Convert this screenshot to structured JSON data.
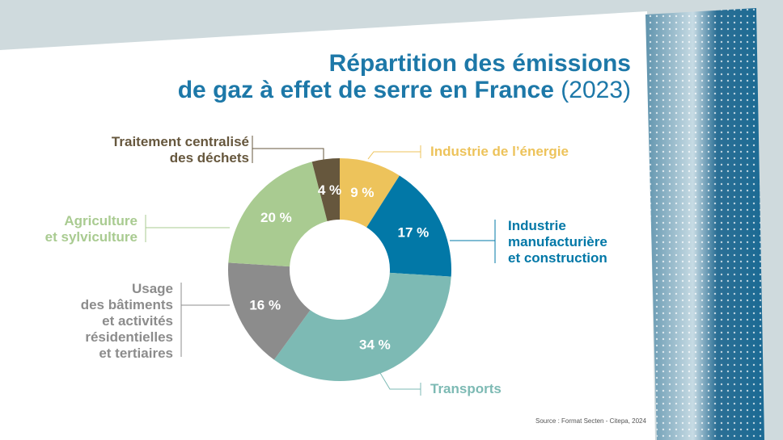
{
  "title": {
    "line1": "Répartition des émissions",
    "line2": "de gaz à effet de serre en France",
    "year": "(2023)"
  },
  "source": "Source : Format Secten - Citepa, 2024",
  "chart_data": {
    "type": "pie",
    "donut": true,
    "unit": "%",
    "slices": [
      {
        "label": "Industrie de l’énergie",
        "value": 9,
        "display": "9 %",
        "color": "#edc35b"
      },
      {
        "label": "Industrie manufacturière et construction",
        "value": 17,
        "display": "17 %",
        "color": "#0278a7"
      },
      {
        "label": "Transports",
        "value": 34,
        "display": "34 %",
        "color": "#7dbab4"
      },
      {
        "label": "Usage des bâtiments et activités résidentielles et tertiaires",
        "value": 16,
        "display": "16 %",
        "color": "#8c8c8c"
      },
      {
        "label": "Agriculture et sylviculture",
        "value": 20,
        "display": "20 %",
        "color": "#a9cb91"
      },
      {
        "label": "Traitement centralisé des déchets",
        "value": 4,
        "display": "4 %",
        "color": "#66573d"
      }
    ]
  },
  "labels": {
    "energie": [
      "Industrie de l’énergie"
    ],
    "manuf": [
      "Industrie",
      "manufacturière",
      "et construction"
    ],
    "transports": [
      "Transports"
    ],
    "batiments": [
      "Usage",
      "des bâtiments",
      "et activités",
      "résidentielles",
      "et tertiaires"
    ],
    "agri": [
      "Agriculture",
      "et sylviculture"
    ],
    "dechets": [
      "Traitement centralisé",
      "des déchets"
    ]
  }
}
